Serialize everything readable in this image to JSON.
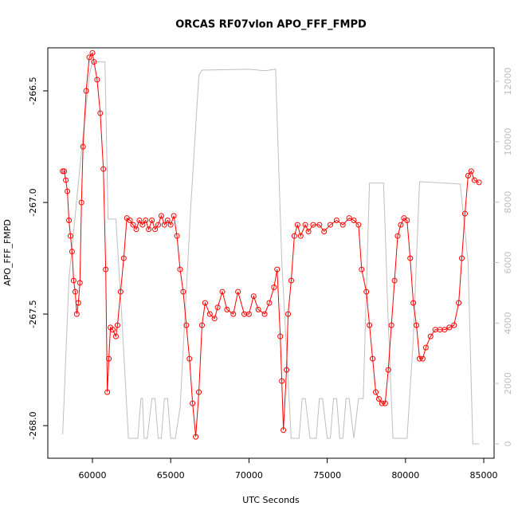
{
  "chart_data": {
    "type": "line",
    "title": "ORCAS RF07vlon APO_FFF_FMPD",
    "x_label": "UTC Seconds",
    "y_label": "APO_FFF_FMPD",
    "xlim": [
      57150,
      85660
    ],
    "xticks": [
      60000,
      65000,
      70000,
      75000,
      80000,
      85000
    ],
    "ylim": [
      -268.146,
      -266.307
    ],
    "yticks": [
      {
        "value": -268,
        "label": "-268.0"
      },
      -267.5,
      {
        "value": -267,
        "label": "-267.0"
      },
      -266.5
    ],
    "y2lim": [
      -475,
      13108
    ],
    "y2ticks": [
      0,
      2000,
      4000,
      6000,
      8000,
      10000,
      12000
    ],
    "series": [
      {
        "color": "#bebebe",
        "axis": "y2",
        "markers": false,
        "x": [
          58100,
          58500,
          59300,
          59800,
          60000,
          60800,
          61000,
          61500,
          61900,
          62300,
          62900,
          63100,
          63200,
          63300,
          63500,
          63800,
          64000,
          64200,
          64400,
          64600,
          64800,
          65000,
          65300,
          65600,
          66300,
          66800,
          67000,
          68000,
          70000,
          71000,
          71700,
          72100,
          72700,
          73200,
          73400,
          73600,
          73900,
          74300,
          74500,
          74700,
          75000,
          75200,
          75400,
          75600,
          75800,
          76000,
          76200,
          76400,
          76700,
          77000,
          77300,
          77700,
          78600,
          78900,
          79200,
          80100,
          80500,
          80900,
          83500,
          84000,
          84300,
          84700
        ],
        "values": [
          317,
          5460,
          9680,
          12200,
          12640,
          12640,
          7440,
          7440,
          4000,
          185,
          185,
          1500,
          1500,
          185,
          185,
          1500,
          1500,
          185,
          185,
          1500,
          1500,
          185,
          185,
          1200,
          8000,
          12190,
          12370,
          12380,
          12400,
          12350,
          12400,
          6000,
          185,
          185,
          1500,
          1500,
          185,
          185,
          1500,
          1500,
          185,
          185,
          1500,
          1500,
          185,
          185,
          1500,
          1500,
          185,
          1500,
          1500,
          8630,
          8630,
          4000,
          185,
          185,
          3500,
          8680,
          8600,
          6000,
          0,
          0
        ]
      },
      {
        "color": "#ff0000",
        "markers": true,
        "x": [
          58100,
          58200,
          58300,
          58400,
          58500,
          58600,
          58700,
          58800,
          58900,
          59000,
          59100,
          59200,
          59300,
          59400,
          59600,
          59800,
          60000,
          60100,
          60300,
          60500,
          60700,
          60850,
          60950,
          61050,
          61150,
          61300,
          61500,
          61600,
          61800,
          62000,
          62200,
          62400,
          62600,
          62800,
          63000,
          63200,
          63400,
          63600,
          63800,
          64000,
          64200,
          64400,
          64600,
          64800,
          65000,
          65200,
          65400,
          65600,
          65800,
          66000,
          66200,
          66400,
          66600,
          66800,
          67000,
          67200,
          67500,
          67800,
          68000,
          68300,
          68600,
          69000,
          69300,
          69700,
          70000,
          70300,
          70600,
          71000,
          71300,
          71600,
          71800,
          72000,
          72100,
          72200,
          72400,
          72500,
          72700,
          72900,
          73100,
          73300,
          73600,
          73800,
          74100,
          74500,
          74800,
          75200,
          75600,
          76000,
          76400,
          76700,
          77000,
          77200,
          77500,
          77700,
          77900,
          78100,
          78300,
          78500,
          78700,
          78900,
          79100,
          79300,
          79500,
          79700,
          79900,
          80100,
          80300,
          80500,
          80700,
          80900,
          81100,
          81300,
          81600,
          81900,
          82200,
          82500,
          82800,
          83100,
          83400,
          83600,
          83800,
          84000,
          84200,
          84400,
          84700
        ],
        "values": [
          -266.86,
          -266.86,
          -266.9,
          -266.95,
          -267.08,
          -267.15,
          -267.22,
          -267.35,
          -267.4,
          -267.5,
          -267.45,
          -267.36,
          -267.0,
          -266.75,
          -266.5,
          -266.35,
          -266.33,
          -266.37,
          -266.45,
          -266.6,
          -266.85,
          -267.3,
          -267.85,
          -267.7,
          -267.56,
          -267.57,
          -267.6,
          -267.55,
          -267.4,
          -267.25,
          -267.07,
          -267.08,
          -267.1,
          -267.12,
          -267.08,
          -267.1,
          -267.08,
          -267.12,
          -267.08,
          -267.12,
          -267.1,
          -267.06,
          -267.1,
          -267.08,
          -267.1,
          -267.06,
          -267.15,
          -267.3,
          -267.4,
          -267.55,
          -267.7,
          -267.9,
          -268.05,
          -267.85,
          -267.55,
          -267.45,
          -267.5,
          -267.52,
          -267.47,
          -267.4,
          -267.48,
          -267.5,
          -267.4,
          -267.5,
          -267.5,
          -267.42,
          -267.48,
          -267.5,
          -267.45,
          -267.38,
          -267.3,
          -267.6,
          -267.8,
          -268.02,
          -267.75,
          -267.5,
          -267.35,
          -267.15,
          -267.1,
          -267.15,
          -267.1,
          -267.13,
          -267.1,
          -267.1,
          -267.13,
          -267.1,
          -267.08,
          -267.1,
          -267.07,
          -267.08,
          -267.1,
          -267.3,
          -267.4,
          -267.55,
          -267.7,
          -267.85,
          -267.88,
          -267.9,
          -267.9,
          -267.75,
          -267.55,
          -267.35,
          -267.15,
          -267.1,
          -267.07,
          -267.08,
          -267.25,
          -267.45,
          -267.55,
          -267.7,
          -267.7,
          -267.65,
          -267.6,
          -267.57,
          -267.57,
          -267.57,
          -267.56,
          -267.55,
          -267.45,
          -267.25,
          -267.05,
          -266.88,
          -266.86,
          -266.9,
          -266.91
        ]
      }
    ]
  }
}
